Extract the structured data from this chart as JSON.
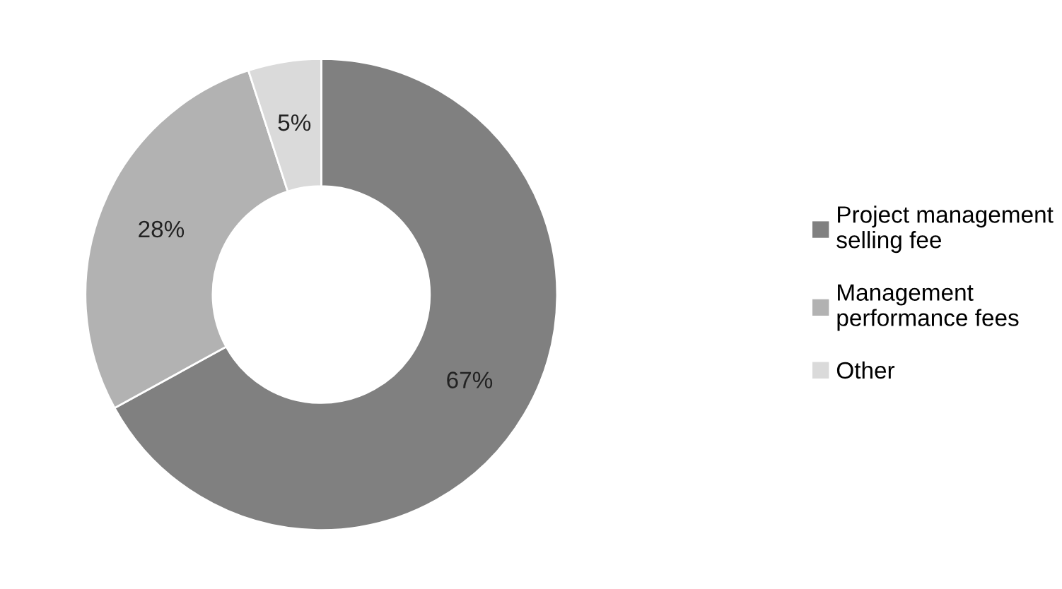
{
  "chart_data": {
    "type": "donut",
    "categories": [
      "Project management\nselling fee",
      "Management\nperformance fees",
      "Other"
    ],
    "values": [
      67,
      28,
      5
    ],
    "colors": [
      "#808080",
      "#b2b2b2",
      "#dadada"
    ],
    "value_labels": [
      "67%",
      "28%",
      "5%"
    ],
    "legend": "right"
  }
}
